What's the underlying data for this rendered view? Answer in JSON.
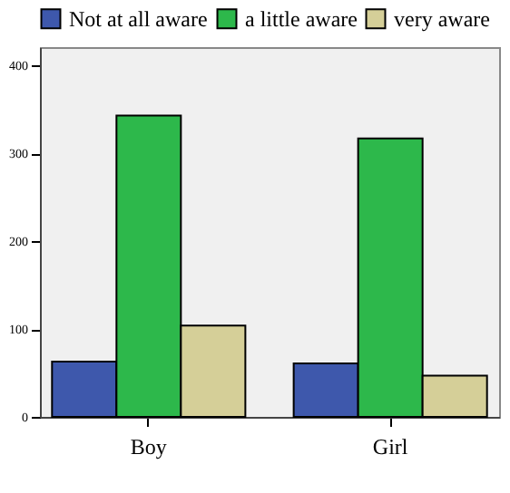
{
  "chart_data": {
    "type": "bar",
    "categories": [
      "Boy",
      "Girl"
    ],
    "series": [
      {
        "name": "Not at all aware",
        "color": "#3e58ac",
        "values": [
          63,
          61
        ]
      },
      {
        "name": "a little aware",
        "color": "#2db84b",
        "values": [
          343,
          317
        ]
      },
      {
        "name": "very aware",
        "color": "#d5cf98",
        "values": [
          104,
          47
        ]
      }
    ],
    "ylim": [
      0,
      421
    ],
    "yticks": [
      0,
      100,
      200,
      300,
      400
    ],
    "grid": false,
    "legend": "top"
  }
}
